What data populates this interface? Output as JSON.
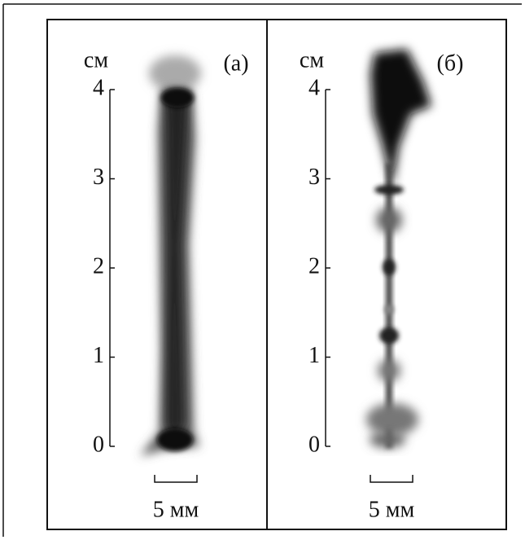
{
  "panels": [
    {
      "label": "(а)",
      "unit": "см",
      "ticks": [
        "0",
        "1",
        "2",
        "3",
        "4"
      ],
      "scale_bar": "5 мм"
    },
    {
      "label": "(б)",
      "unit": "см",
      "ticks": [
        "0",
        "1",
        "2",
        "3",
        "4"
      ],
      "scale_bar": "5 мм"
    }
  ]
}
